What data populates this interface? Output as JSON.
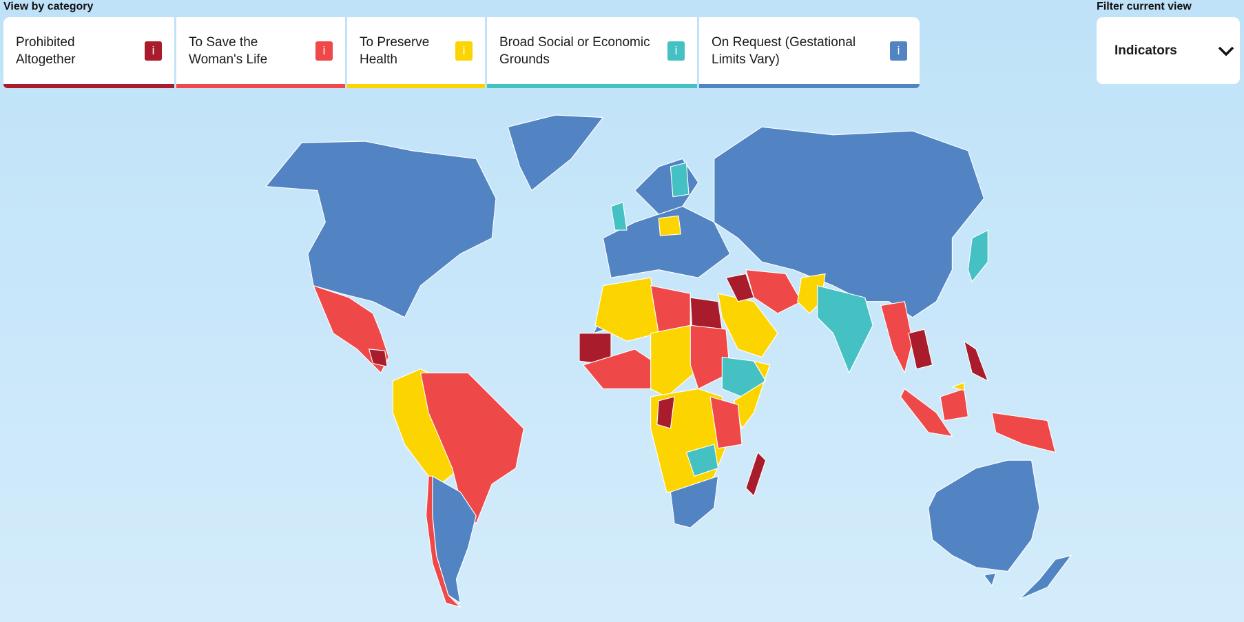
{
  "header": {
    "category_label": "View by category",
    "filter_label": "Filter current view",
    "filter_value": "Indicators"
  },
  "categories": [
    {
      "label": "Prohibited Altogether",
      "icon": "i",
      "color": "#a81c2b"
    },
    {
      "label": "To Save the Woman's Life",
      "icon": "i",
      "color": "#ef4848"
    },
    {
      "label": "To Preserve Health",
      "icon": "i",
      "color": "#fcd500"
    },
    {
      "label": "Broad Social or Economic Grounds",
      "icon": "i",
      "color": "#46c1c3"
    },
    {
      "label": "On Request (Gestational Limits Vary)",
      "icon": "i",
      "color": "#5283c3"
    }
  ],
  "no_data_color": "#b8b8b8"
}
